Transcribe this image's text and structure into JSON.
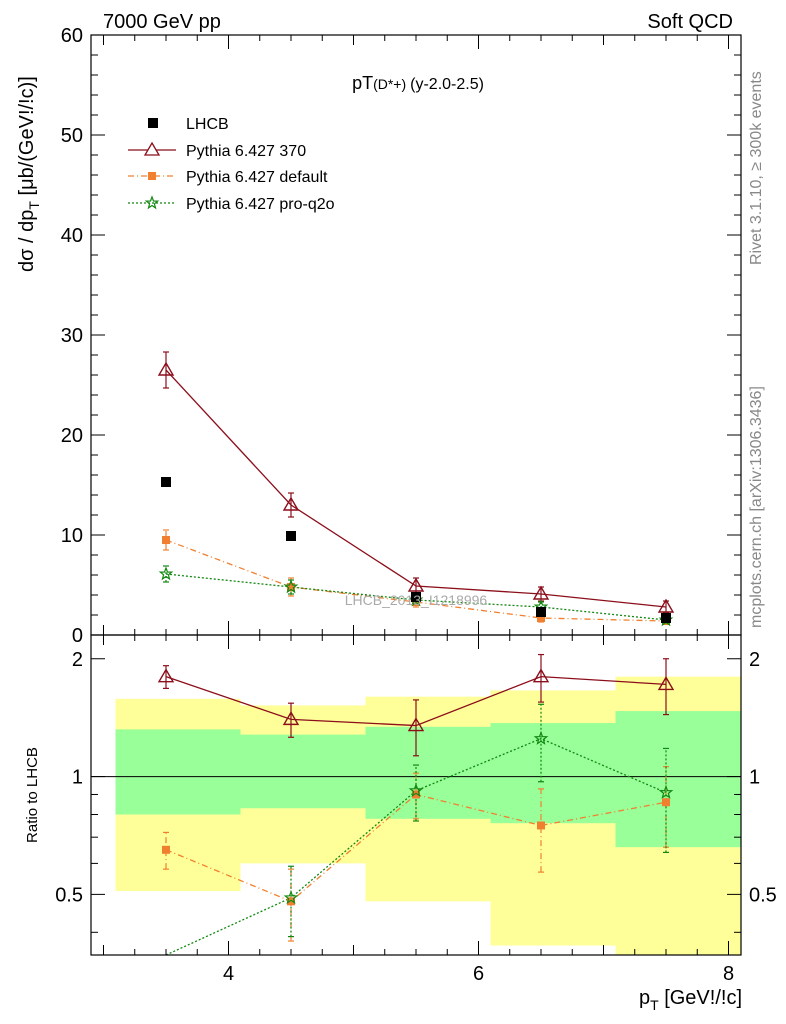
{
  "header": {
    "left": "7000 GeV pp",
    "right": "Soft QCD"
  },
  "side_labels": {
    "rivet": "Rivet 3.1.10, ≥ 300k events",
    "mcplots": "mcplots.cern.ch [arXiv:1306.3436]"
  },
  "chart_data": [
    {
      "type": "scatter",
      "title": "pT",
      "title_sub": "(D*+)",
      "title_suffix": "(y-2.0-2.5)",
      "ylabel": "dσ / dp",
      "ylabel_sub": "T",
      "ylabel_suffix": " [μb/(GeV!/!c)]",
      "xlim": [
        2.9,
        8.1
      ],
      "ylim": [
        0,
        60
      ],
      "y_ticks": [
        0,
        10,
        20,
        30,
        40,
        50,
        60
      ],
      "y_tick_labels": [
        "0",
        "10",
        "20",
        "30",
        "40",
        "50",
        "60"
      ],
      "watermark": "LHCB_2013_I1218996",
      "legend_position": "top-left",
      "x": [
        3.5,
        4.5,
        5.5,
        6.5,
        7.5
      ],
      "x_bins": [
        [
          3,
          4
        ],
        [
          4,
          5
        ],
        [
          5,
          6
        ],
        [
          6,
          7
        ],
        [
          7,
          8
        ]
      ],
      "series": [
        {
          "name": "LHCB",
          "style": "data",
          "color": "#000000",
          "values": [
            15.3,
            9.9,
            3.8,
            2.3,
            1.7
          ],
          "errors": [
            0,
            0,
            0,
            0,
            0
          ]
        },
        {
          "name": "Pythia 6.427 370",
          "style": "triangle",
          "color": "#8b0e1a",
          "values": [
            26.5,
            13.0,
            4.9,
            4.1,
            2.8
          ],
          "errors": [
            1.8,
            1.2,
            0.8,
            0.7,
            0.6
          ]
        },
        {
          "name": "Pythia 6.427 default",
          "style": "square",
          "color": "#f08030",
          "values": [
            9.5,
            4.8,
            3.3,
            1.7,
            1.4
          ],
          "errors": [
            1.0,
            0.9,
            0.5,
            0.4,
            0.3
          ]
        },
        {
          "name": "Pythia 6.427 pro-q2o",
          "style": "star",
          "color": "#118811",
          "values": [
            6.1,
            4.8,
            3.5,
            2.8,
            1.5
          ],
          "errors": [
            0.8,
            0.7,
            0.5,
            0.5,
            0.3
          ]
        }
      ]
    },
    {
      "type": "scatter",
      "ylabel": "Ratio to LHCB",
      "xlabel": "p",
      "xlabel_sub": "T",
      "xlabel_suffix": " [GeV!/!c]",
      "xlim": [
        2.9,
        8.1
      ],
      "ylim": [
        0.35,
        2.3
      ],
      "x_ticks": [
        4,
        6,
        8
      ],
      "x_tick_labels": [
        "4",
        "6",
        "8"
      ],
      "y_ticks": [
        0.5,
        1,
        2
      ],
      "y_tick_labels": [
        "0.5",
        "1",
        "2"
      ],
      "bands": {
        "outer_color": "#ffff99",
        "inner_color": "#99ff99",
        "outer": [
          [
            0.51,
            1.58
          ],
          [
            0.6,
            1.52
          ],
          [
            0.48,
            1.6
          ],
          [
            0.37,
            1.66
          ],
          [
            0.35,
            1.8
          ]
        ],
        "inner": [
          [
            0.8,
            1.32
          ],
          [
            0.83,
            1.28
          ],
          [
            0.78,
            1.34
          ],
          [
            0.76,
            1.37
          ],
          [
            0.66,
            1.47
          ]
        ]
      },
      "series": [
        {
          "name": "Pythia 6.427 370",
          "style": "triangle",
          "color": "#8b0e1a",
          "values": [
            1.8,
            1.4,
            1.35,
            1.8,
            1.72
          ],
          "errors": [
            0.12,
            0.14,
            0.22,
            0.25,
            0.28
          ]
        },
        {
          "name": "Pythia 6.427 default",
          "style": "square",
          "color": "#f08030",
          "values": [
            0.65,
            0.48,
            0.9,
            0.75,
            0.86
          ],
          "errors": [
            0.07,
            0.1,
            0.12,
            0.18,
            0.2
          ]
        },
        {
          "name": "Pythia 6.427 pro-q2o",
          "style": "star",
          "color": "#118811",
          "values": [
            0.33,
            0.49,
            0.92,
            1.25,
            0.91
          ],
          "errors": [
            0.06,
            0.1,
            0.15,
            0.28,
            0.27
          ]
        }
      ]
    }
  ]
}
